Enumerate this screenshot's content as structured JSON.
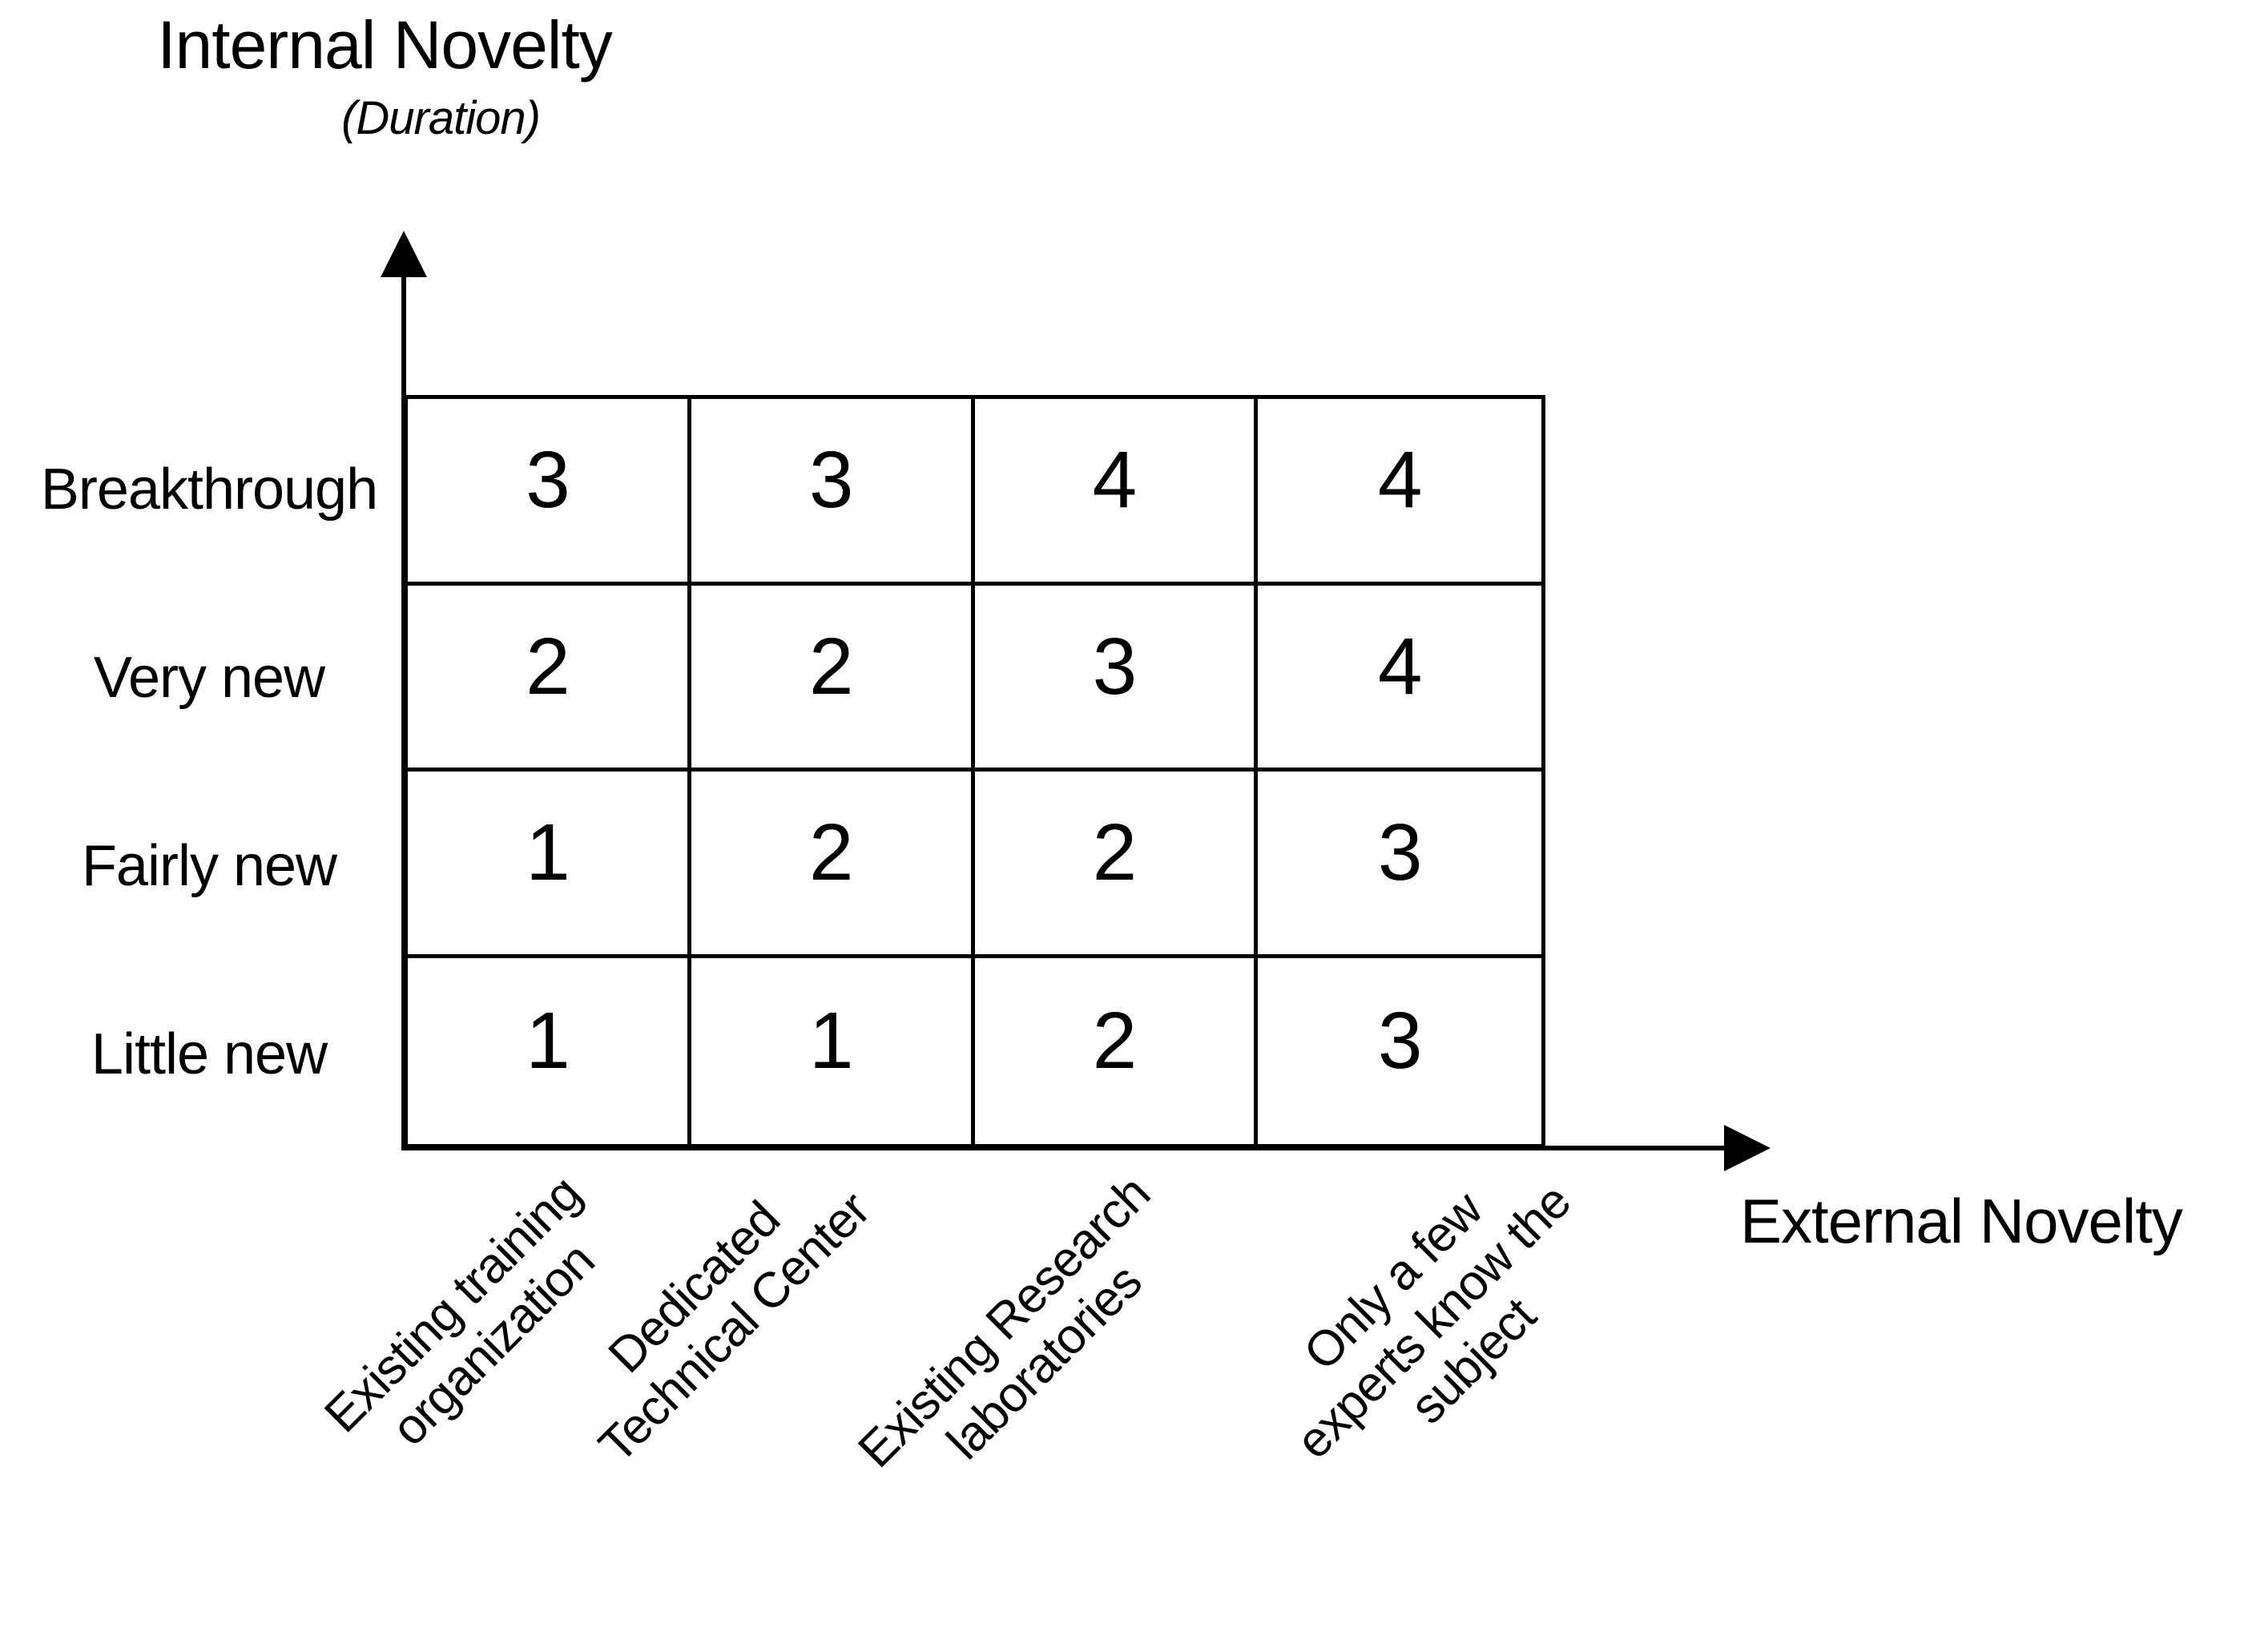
{
  "header": {
    "title": "Internal Novelty",
    "subtitle": "(Duration)"
  },
  "axes": {
    "x_label": "External Novelty",
    "y_label": "Internal Novelty",
    "y_sublabel": "(Duration)"
  },
  "matrix": {
    "rows": [
      {
        "label": "Breakthrough",
        "values": [
          3,
          3,
          4,
          4
        ]
      },
      {
        "label": "Very new",
        "values": [
          2,
          2,
          3,
          4
        ]
      },
      {
        "label": "Fairly new",
        "values": [
          1,
          2,
          2,
          3
        ]
      },
      {
        "label": "Little new",
        "values": [
          1,
          1,
          2,
          3
        ]
      }
    ],
    "columns": [
      {
        "label": "Existing training\norganization"
      },
      {
        "label": "Dedicated\nTechnical Center"
      },
      {
        "label": "Existing Research\nlaboratories"
      },
      {
        "label": "Only a few\nexperts know the\nsubject"
      }
    ]
  },
  "chart_data": {
    "type": "heatmap",
    "x_axis_label": "External Novelty",
    "y_axis_label": "Internal Novelty (Duration)",
    "x_categories": [
      "Existing training organization",
      "Dedicated Technical Center",
      "Existing Research laboratories",
      "Only a few experts know the subject"
    ],
    "y_categories": [
      "Breakthrough",
      "Very new",
      "Fairly new",
      "Little new"
    ],
    "values": [
      [
        3,
        3,
        4,
        4
      ],
      [
        2,
        2,
        3,
        4
      ],
      [
        1,
        2,
        2,
        3
      ],
      [
        1,
        1,
        2,
        3
      ]
    ],
    "value_range": [
      1,
      4
    ],
    "grid": true,
    "legend": false,
    "colors": {
      "ink": "#000000",
      "background": "#ffffff"
    }
  }
}
